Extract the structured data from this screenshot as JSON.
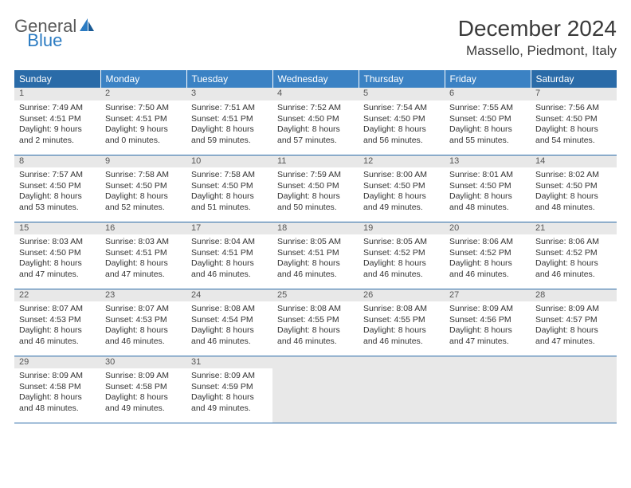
{
  "logo": {
    "word1": "General",
    "word2": "Blue"
  },
  "title": "December 2024",
  "location": "Massello, Piedmont, Italy",
  "colors": {
    "header_bg": "#3b82c4",
    "header_weekend_bg": "#2a6ba8",
    "header_text": "#ffffff",
    "daynum_bg": "#e8e8e8",
    "row_border": "#2a6ba8",
    "logo_gray": "#5a5a5a",
    "logo_blue": "#2b7bc2"
  },
  "weekdays": [
    "Sunday",
    "Monday",
    "Tuesday",
    "Wednesday",
    "Thursday",
    "Friday",
    "Saturday"
  ],
  "weeks": [
    {
      "days": [
        {
          "num": "1",
          "sunrise": "Sunrise: 7:49 AM",
          "sunset": "Sunset: 4:51 PM",
          "daylight": "Daylight: 9 hours and 2 minutes."
        },
        {
          "num": "2",
          "sunrise": "Sunrise: 7:50 AM",
          "sunset": "Sunset: 4:51 PM",
          "daylight": "Daylight: 9 hours and 0 minutes."
        },
        {
          "num": "3",
          "sunrise": "Sunrise: 7:51 AM",
          "sunset": "Sunset: 4:51 PM",
          "daylight": "Daylight: 8 hours and 59 minutes."
        },
        {
          "num": "4",
          "sunrise": "Sunrise: 7:52 AM",
          "sunset": "Sunset: 4:50 PM",
          "daylight": "Daylight: 8 hours and 57 minutes."
        },
        {
          "num": "5",
          "sunrise": "Sunrise: 7:54 AM",
          "sunset": "Sunset: 4:50 PM",
          "daylight": "Daylight: 8 hours and 56 minutes."
        },
        {
          "num": "6",
          "sunrise": "Sunrise: 7:55 AM",
          "sunset": "Sunset: 4:50 PM",
          "daylight": "Daylight: 8 hours and 55 minutes."
        },
        {
          "num": "7",
          "sunrise": "Sunrise: 7:56 AM",
          "sunset": "Sunset: 4:50 PM",
          "daylight": "Daylight: 8 hours and 54 minutes."
        }
      ]
    },
    {
      "days": [
        {
          "num": "8",
          "sunrise": "Sunrise: 7:57 AM",
          "sunset": "Sunset: 4:50 PM",
          "daylight": "Daylight: 8 hours and 53 minutes."
        },
        {
          "num": "9",
          "sunrise": "Sunrise: 7:58 AM",
          "sunset": "Sunset: 4:50 PM",
          "daylight": "Daylight: 8 hours and 52 minutes."
        },
        {
          "num": "10",
          "sunrise": "Sunrise: 7:58 AM",
          "sunset": "Sunset: 4:50 PM",
          "daylight": "Daylight: 8 hours and 51 minutes."
        },
        {
          "num": "11",
          "sunrise": "Sunrise: 7:59 AM",
          "sunset": "Sunset: 4:50 PM",
          "daylight": "Daylight: 8 hours and 50 minutes."
        },
        {
          "num": "12",
          "sunrise": "Sunrise: 8:00 AM",
          "sunset": "Sunset: 4:50 PM",
          "daylight": "Daylight: 8 hours and 49 minutes."
        },
        {
          "num": "13",
          "sunrise": "Sunrise: 8:01 AM",
          "sunset": "Sunset: 4:50 PM",
          "daylight": "Daylight: 8 hours and 48 minutes."
        },
        {
          "num": "14",
          "sunrise": "Sunrise: 8:02 AM",
          "sunset": "Sunset: 4:50 PM",
          "daylight": "Daylight: 8 hours and 48 minutes."
        }
      ]
    },
    {
      "days": [
        {
          "num": "15",
          "sunrise": "Sunrise: 8:03 AM",
          "sunset": "Sunset: 4:50 PM",
          "daylight": "Daylight: 8 hours and 47 minutes."
        },
        {
          "num": "16",
          "sunrise": "Sunrise: 8:03 AM",
          "sunset": "Sunset: 4:51 PM",
          "daylight": "Daylight: 8 hours and 47 minutes."
        },
        {
          "num": "17",
          "sunrise": "Sunrise: 8:04 AM",
          "sunset": "Sunset: 4:51 PM",
          "daylight": "Daylight: 8 hours and 46 minutes."
        },
        {
          "num": "18",
          "sunrise": "Sunrise: 8:05 AM",
          "sunset": "Sunset: 4:51 PM",
          "daylight": "Daylight: 8 hours and 46 minutes."
        },
        {
          "num": "19",
          "sunrise": "Sunrise: 8:05 AM",
          "sunset": "Sunset: 4:52 PM",
          "daylight": "Daylight: 8 hours and 46 minutes."
        },
        {
          "num": "20",
          "sunrise": "Sunrise: 8:06 AM",
          "sunset": "Sunset: 4:52 PM",
          "daylight": "Daylight: 8 hours and 46 minutes."
        },
        {
          "num": "21",
          "sunrise": "Sunrise: 8:06 AM",
          "sunset": "Sunset: 4:52 PM",
          "daylight": "Daylight: 8 hours and 46 minutes."
        }
      ]
    },
    {
      "days": [
        {
          "num": "22",
          "sunrise": "Sunrise: 8:07 AM",
          "sunset": "Sunset: 4:53 PM",
          "daylight": "Daylight: 8 hours and 46 minutes."
        },
        {
          "num": "23",
          "sunrise": "Sunrise: 8:07 AM",
          "sunset": "Sunset: 4:53 PM",
          "daylight": "Daylight: 8 hours and 46 minutes."
        },
        {
          "num": "24",
          "sunrise": "Sunrise: 8:08 AM",
          "sunset": "Sunset: 4:54 PM",
          "daylight": "Daylight: 8 hours and 46 minutes."
        },
        {
          "num": "25",
          "sunrise": "Sunrise: 8:08 AM",
          "sunset": "Sunset: 4:55 PM",
          "daylight": "Daylight: 8 hours and 46 minutes."
        },
        {
          "num": "26",
          "sunrise": "Sunrise: 8:08 AM",
          "sunset": "Sunset: 4:55 PM",
          "daylight": "Daylight: 8 hours and 46 minutes."
        },
        {
          "num": "27",
          "sunrise": "Sunrise: 8:09 AM",
          "sunset": "Sunset: 4:56 PM",
          "daylight": "Daylight: 8 hours and 47 minutes."
        },
        {
          "num": "28",
          "sunrise": "Sunrise: 8:09 AM",
          "sunset": "Sunset: 4:57 PM",
          "daylight": "Daylight: 8 hours and 47 minutes."
        }
      ]
    },
    {
      "days": [
        {
          "num": "29",
          "sunrise": "Sunrise: 8:09 AM",
          "sunset": "Sunset: 4:58 PM",
          "daylight": "Daylight: 8 hours and 48 minutes."
        },
        {
          "num": "30",
          "sunrise": "Sunrise: 8:09 AM",
          "sunset": "Sunset: 4:58 PM",
          "daylight": "Daylight: 8 hours and 49 minutes."
        },
        {
          "num": "31",
          "sunrise": "Sunrise: 8:09 AM",
          "sunset": "Sunset: 4:59 PM",
          "daylight": "Daylight: 8 hours and 49 minutes."
        },
        {
          "empty": true
        },
        {
          "empty": true
        },
        {
          "empty": true
        },
        {
          "empty": true
        }
      ]
    }
  ]
}
